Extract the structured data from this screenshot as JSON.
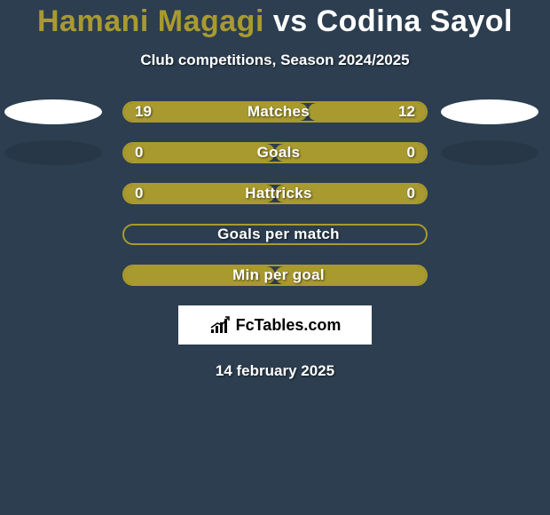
{
  "title": {
    "player1": "Hamani Magagi",
    "vs": " vs ",
    "player2": "Codina Sayol",
    "color1": "#a89a2f",
    "color2": "#ffffff"
  },
  "subtitle": "Club competitions, Season 2024/2025",
  "background_color": "#2c3e50",
  "rows": [
    {
      "label": "Matches",
      "left_value": "19",
      "right_value": "12",
      "fill_color": "#a89a2f",
      "border_color": "#a89a2f",
      "left_fill_pct": 61,
      "right_fill_pct": 39,
      "show_left_ellipse": true,
      "show_right_ellipse": true,
      "left_ellipse_color": "white",
      "right_ellipse_color": "white"
    },
    {
      "label": "Goals",
      "left_value": "0",
      "right_value": "0",
      "fill_color": "#a89a2f",
      "border_color": "#a89a2f",
      "left_fill_pct": 50,
      "right_fill_pct": 50,
      "show_left_ellipse": true,
      "show_right_ellipse": true,
      "left_ellipse_color": "dark",
      "right_ellipse_color": "dark"
    },
    {
      "label": "Hattricks",
      "left_value": "0",
      "right_value": "0",
      "fill_color": "#a89a2f",
      "border_color": "#a89a2f",
      "left_fill_pct": 50,
      "right_fill_pct": 50,
      "show_left_ellipse": false,
      "show_right_ellipse": false
    },
    {
      "label": "Goals per match",
      "left_value": "",
      "right_value": "",
      "fill_color": "transparent",
      "border_color": "#a89a2f",
      "left_fill_pct": 0,
      "right_fill_pct": 0,
      "show_left_ellipse": false,
      "show_right_ellipse": false
    },
    {
      "label": "Min per goal",
      "left_value": "",
      "right_value": "",
      "fill_color": "#a89a2f",
      "border_color": "#a89a2f",
      "left_fill_pct": 50,
      "right_fill_pct": 50,
      "show_left_ellipse": false,
      "show_right_ellipse": false
    }
  ],
  "logo": {
    "text": "FcTables.com",
    "icon_color": "#000000",
    "bg_color": "#ffffff"
  },
  "date": "14 february 2025"
}
